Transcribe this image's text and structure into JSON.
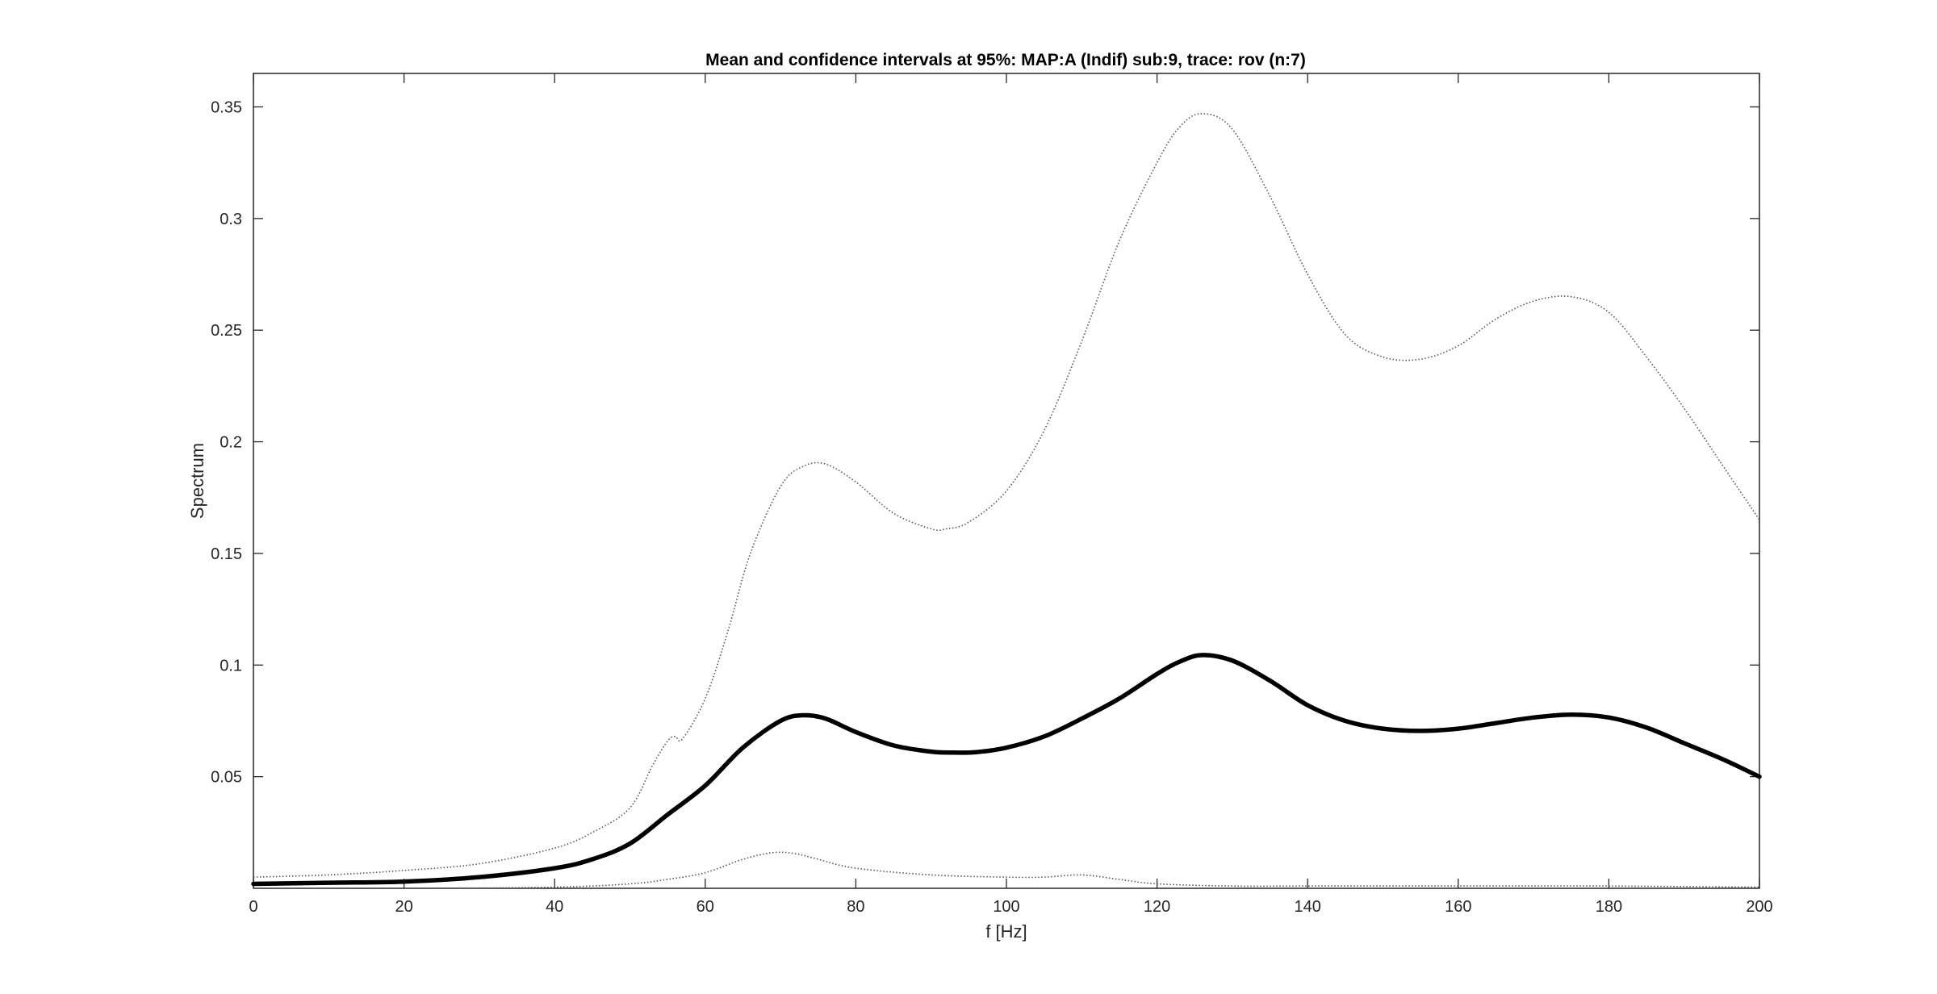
{
  "chart_data": {
    "type": "line",
    "title": "Mean and confidence intervals at 95%: MAP:A (Indif) sub:9, trace: rov (n:7)",
    "xlabel": "f [Hz]",
    "ylabel": "Spectrum",
    "xlim": [
      0,
      200
    ],
    "ylim": [
      0,
      0.365
    ],
    "xticks": [
      0,
      20,
      40,
      60,
      80,
      100,
      120,
      140,
      160,
      180,
      200
    ],
    "xtick_labels": [
      "0",
      "20",
      "40",
      "60",
      "80",
      "100",
      "120",
      "140",
      "160",
      "180",
      "200"
    ],
    "yticks": [
      0.05,
      0.1,
      0.15,
      0.2,
      0.25,
      0.3,
      0.35
    ],
    "ytick_labels": [
      "0.05",
      "0.1",
      "0.15",
      "0.2",
      "0.25",
      "0.3",
      "0.35"
    ],
    "grid": false,
    "legend": "none",
    "colors": {
      "mean": "#000000",
      "bounds": "#555555",
      "axes": "#262626"
    },
    "series": [
      {
        "role": "mean",
        "style": "solid-thick",
        "x": [
          0,
          10,
          20,
          30,
          40,
          45,
          50,
          55,
          60,
          65,
          70,
          73,
          76,
          80,
          85,
          90,
          93,
          96,
          100,
          105,
          110,
          115,
          120,
          123,
          126,
          130,
          135,
          140,
          145,
          150,
          155,
          160,
          165,
          170,
          175,
          180,
          185,
          190,
          195,
          200
        ],
        "y": [
          0.002,
          0.0025,
          0.003,
          0.005,
          0.009,
          0.013,
          0.02,
          0.033,
          0.046,
          0.063,
          0.075,
          0.0775,
          0.076,
          0.07,
          0.064,
          0.0612,
          0.0608,
          0.061,
          0.063,
          0.068,
          0.076,
          0.085,
          0.096,
          0.1015,
          0.1045,
          0.102,
          0.093,
          0.082,
          0.075,
          0.0715,
          0.0705,
          0.0715,
          0.074,
          0.0765,
          0.0778,
          0.0765,
          0.072,
          0.065,
          0.058,
          0.05
        ]
      },
      {
        "role": "upper",
        "style": "dotted",
        "x": [
          0,
          10,
          20,
          30,
          40,
          45,
          50,
          53,
          55,
          56,
          57,
          60,
          63,
          66,
          70,
          73,
          76,
          80,
          85,
          90,
          92,
          95,
          100,
          105,
          110,
          115,
          120,
          123,
          126,
          130,
          135,
          140,
          145,
          150,
          155,
          160,
          165,
          170,
          175,
          180,
          185,
          190,
          195,
          200
        ],
        "y": [
          0.005,
          0.006,
          0.008,
          0.011,
          0.018,
          0.025,
          0.036,
          0.055,
          0.066,
          0.068,
          0.067,
          0.085,
          0.115,
          0.15,
          0.18,
          0.189,
          0.19,
          0.182,
          0.168,
          0.161,
          0.161,
          0.164,
          0.178,
          0.205,
          0.245,
          0.29,
          0.325,
          0.341,
          0.347,
          0.34,
          0.31,
          0.275,
          0.248,
          0.238,
          0.237,
          0.243,
          0.255,
          0.263,
          0.265,
          0.258,
          0.238,
          0.215,
          0.19,
          0.165
        ]
      },
      {
        "role": "lower",
        "style": "dotted",
        "x": [
          0,
          20,
          40,
          50,
          55,
          60,
          65,
          69,
          72,
          75,
          80,
          90,
          100,
          105,
          110,
          115,
          120,
          130,
          140,
          160,
          180,
          200
        ],
        "y": [
          0.0,
          0.0,
          0.0005,
          0.002,
          0.004,
          0.007,
          0.013,
          0.016,
          0.0155,
          0.013,
          0.009,
          0.006,
          0.005,
          0.005,
          0.006,
          0.004,
          0.002,
          0.001,
          0.001,
          0.001,
          0.001,
          0.0005
        ]
      }
    ]
  }
}
